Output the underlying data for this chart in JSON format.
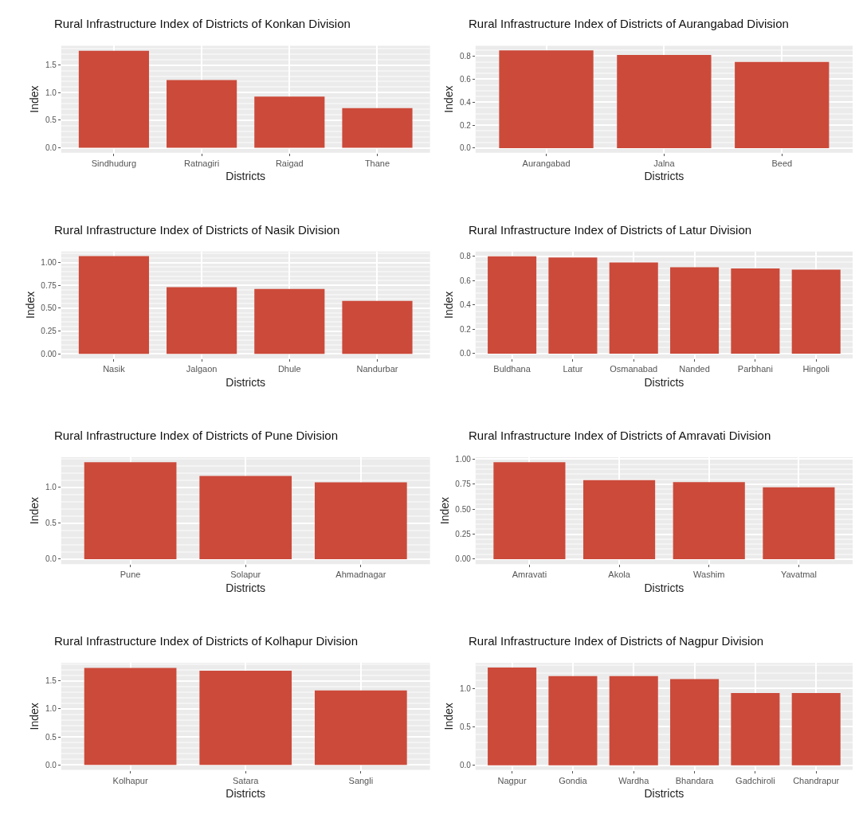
{
  "chart_data": [
    {
      "type": "bar",
      "title": "Rural Infrastructure Index of Districts of Konkan Division",
      "xlabel": "Districts",
      "ylabel": "Index",
      "categories": [
        "Sindhudurg",
        "Ratnagiri",
        "Raigad",
        "Thane"
      ],
      "values": [
        1.76,
        1.23,
        0.93,
        0.72
      ],
      "color": "#cc4a3a",
      "ylim": [
        -0.09,
        1.85
      ],
      "yticks": [
        {
          "value": 0,
          "label": "0.0"
        },
        0.5,
        {
          "value": 1,
          "label": "1.0"
        },
        1.5
      ],
      "grid": true
    },
    {
      "type": "bar",
      "title": "Rural Infrastructure Index of Districts of Aurangabad Division",
      "xlabel": "Districts",
      "ylabel": "Index",
      "categories": [
        "Aurangabad",
        "Jalna",
        "Beed"
      ],
      "values": [
        0.85,
        0.81,
        0.75
      ],
      "color": "#cc4a3a",
      "ylim": [
        -0.04,
        0.89
      ],
      "yticks": [
        {
          "value": 0,
          "label": "0.0"
        },
        0.2,
        0.4,
        0.6,
        0.8
      ],
      "grid": true
    },
    {
      "type": "bar",
      "title": "Rural Infrastructure Index of Districts of Nasik Division",
      "xlabel": "Districts",
      "ylabel": "Index",
      "categories": [
        "Nasik",
        "Jalgaon",
        "Dhule",
        "Nandurbar"
      ],
      "values": [
        1.07,
        0.73,
        0.71,
        0.58
      ],
      "color": "#cc4a3a",
      "ylim": [
        -0.05,
        1.12
      ],
      "yticks": [
        {
          "value": 0,
          "label": "0.00"
        },
        0.25,
        {
          "value": 0.5,
          "label": "0.50"
        },
        0.75,
        {
          "value": 1,
          "label": "1.00"
        }
      ],
      "grid": true
    },
    {
      "type": "bar",
      "title": "Rural Infrastructure Index of Districts of Latur Division",
      "xlabel": "Districts",
      "ylabel": "Index",
      "categories": [
        "Buldhana",
        "Latur",
        "Osmanabad",
        "Nanded",
        "Parbhani",
        "Hingoli"
      ],
      "values": [
        0.8,
        0.79,
        0.75,
        0.71,
        0.7,
        0.69
      ],
      "color": "#cc4a3a",
      "ylim": [
        -0.04,
        0.84
      ],
      "yticks": [
        {
          "value": 0,
          "label": "0.0"
        },
        0.2,
        0.4,
        0.6,
        0.8
      ],
      "grid": true
    },
    {
      "type": "bar",
      "title": "Rural Infrastructure Index of Districts of Pune Division",
      "xlabel": "Districts",
      "ylabel": "Index",
      "categories": [
        "Pune",
        "Solapur",
        "Ahmadnagar"
      ],
      "values": [
        1.35,
        1.16,
        1.07
      ],
      "color": "#cc4a3a",
      "ylim": [
        -0.07,
        1.42
      ],
      "yticks": [
        {
          "value": 0,
          "label": "0.0"
        },
        0.5,
        {
          "value": 1,
          "label": "1.0"
        }
      ],
      "grid": true
    },
    {
      "type": "bar",
      "title": "Rural Infrastructure Index of Districts of Amravati Division",
      "xlabel": "Districts",
      "ylabel": "Index",
      "categories": [
        "Amravati",
        "Akola",
        "Washim",
        "Yavatmal"
      ],
      "values": [
        0.97,
        0.79,
        0.77,
        0.72
      ],
      "color": "#cc4a3a",
      "ylim": [
        -0.05,
        1.02
      ],
      "yticks": [
        {
          "value": 0,
          "label": "0.00"
        },
        0.25,
        {
          "value": 0.5,
          "label": "0.50"
        },
        0.75,
        {
          "value": 1,
          "label": "1.00"
        }
      ],
      "grid": true
    },
    {
      "type": "bar",
      "title": "Rural Infrastructure Index of Districts of Kolhapur Division",
      "xlabel": "Districts",
      "ylabel": "Index",
      "categories": [
        "Kolhapur",
        "Satara",
        "Sangli"
      ],
      "values": [
        1.73,
        1.68,
        1.33
      ],
      "color": "#cc4a3a",
      "ylim": [
        -0.09,
        1.82
      ],
      "yticks": [
        {
          "value": 0,
          "label": "0.0"
        },
        0.5,
        {
          "value": 1,
          "label": "1.0"
        },
        1.5
      ],
      "grid": true
    },
    {
      "type": "bar",
      "title": "Rural Infrastructure Index of Districts of Nagpur Division",
      "xlabel": "Districts",
      "ylabel": "Index",
      "categories": [
        "Nagpur",
        "Gondia",
        "Wardha",
        "Bhandara",
        "Gadchiroli",
        "Chandrapur"
      ],
      "values": [
        1.27,
        1.16,
        1.16,
        1.12,
        0.94,
        0.94
      ],
      "color": "#cc4a3a",
      "ylim": [
        -0.06,
        1.33
      ],
      "yticks": [
        {
          "value": 0,
          "label": "0.0"
        },
        0.5,
        {
          "value": 1,
          "label": "1.0"
        }
      ],
      "grid": true
    }
  ]
}
